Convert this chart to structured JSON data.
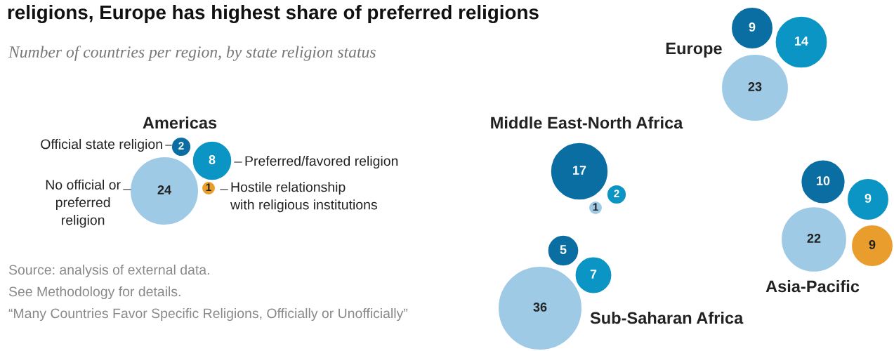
{
  "chart_data": [
    {
      "type": "other",
      "title": "Americas",
      "data_labels": true,
      "categories": [
        "Official state religion",
        "Preferred/favored religion",
        "No official or\npreferred\nreligion",
        "Hostile relationship\nwith religious institutions"
      ],
      "values": [
        2,
        8,
        24,
        1
      ],
      "colors": [
        "#0a6ea3",
        "#0b95c4",
        "#9ecae6",
        "#e99d2c"
      ],
      "annotations": [
        "religions, Europe has highest share of preferred religions",
        "Number of countries per region, by state religion status",
        "Source: analysis of external data.",
        "See Methodology for details.",
        "“Many Countries Favor Specific Religions, Officially or Unofficially”"
      ]
    },
    {
      "type": "other",
      "title": "Europe",
      "data_labels": true,
      "categories": [
        null,
        null,
        null
      ],
      "values": [
        9,
        14,
        23
      ],
      "colors": [
        "#0a6ea3",
        "#0b95c4",
        "#9ecae6"
      ]
    },
    {
      "type": "other",
      "title": "Middle East-North Africa",
      "data_labels": true,
      "categories": [
        null,
        null,
        null
      ],
      "values": [
        17,
        2,
        1
      ],
      "colors": [
        "#0a6ea3",
        "#0b95c4",
        "#9ecae6"
      ]
    },
    {
      "type": "other",
      "title": "Sub-Saharan Africa",
      "data_labels": true,
      "categories": [
        null,
        null,
        null
      ],
      "values": [
        5,
        7,
        36
      ],
      "colors": [
        "#0a6ea3",
        "#0b95c4",
        "#9ecae6"
      ]
    },
    {
      "type": "other",
      "title": "Asia-Pacific",
      "data_labels": true,
      "categories": [
        null,
        null,
        null,
        null
      ],
      "values": [
        10,
        9,
        22,
        9
      ],
      "colors": [
        "#0a6ea3",
        "#0b95c4",
        "#9ecae6",
        "#e99d2c"
      ]
    }
  ]
}
